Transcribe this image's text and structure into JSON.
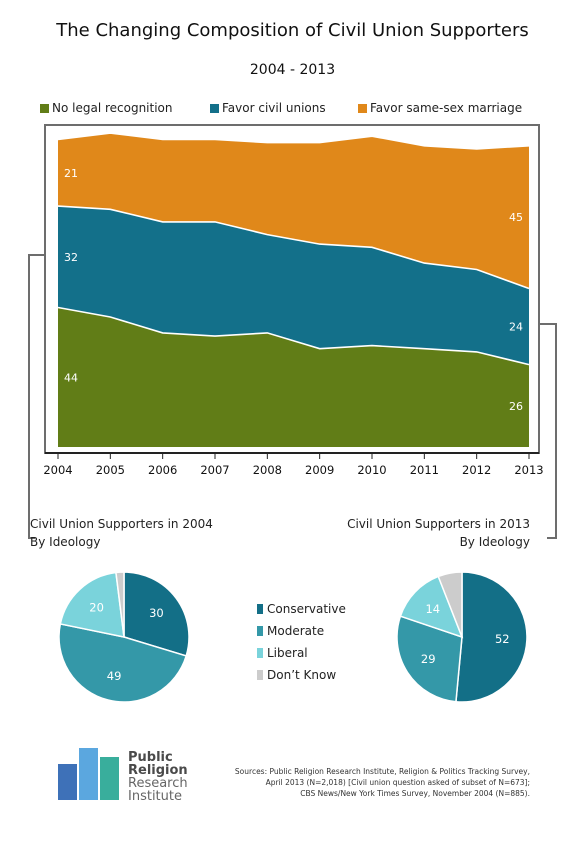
{
  "title": "The Changing Composition of Civil Union Supporters",
  "subtitle": "2004 - 2013",
  "colors": {
    "no_legal_recognition": "#617d17",
    "favor_civil_unions": "#13708a",
    "favor_same_sex_marriage": "#e0881a",
    "conservative": "#136f87",
    "moderate": "#3498a8",
    "liberal": "#7ad3db",
    "dont_know": "#cccccc",
    "frame": "#6d6d6d"
  },
  "chart_data": [
    {
      "type": "area",
      "stacked": true,
      "x": [
        "2004",
        "2005",
        "2006",
        "2007",
        "2008",
        "2009",
        "2010",
        "2011",
        "2012",
        "2013"
      ],
      "series": [
        {
          "name": "No legal recognition",
          "values": [
            44,
            41,
            36,
            35,
            36,
            31,
            32,
            31,
            30,
            26
          ]
        },
        {
          "name": "Favor civil unions",
          "values": [
            32,
            34,
            35,
            36,
            31,
            33,
            31,
            27,
            26,
            24
          ]
        },
        {
          "name": "Favor same-sex marriage",
          "values": [
            21,
            24,
            26,
            26,
            29,
            32,
            35,
            37,
            38,
            45
          ]
        }
      ],
      "data_labels": [
        {
          "series": 0,
          "index": 0,
          "text": "44"
        },
        {
          "series": 1,
          "index": 0,
          "text": "32"
        },
        {
          "series": 2,
          "index": 0,
          "text": "21"
        },
        {
          "series": 0,
          "index": 9,
          "text": "26"
        },
        {
          "series": 1,
          "index": 9,
          "text": "24"
        },
        {
          "series": 2,
          "index": 9,
          "text": "45"
        }
      ],
      "ylim": [
        0,
        100
      ],
      "legend": "top",
      "grid": false
    },
    {
      "type": "pie",
      "title": "Civil Union Supporters in 2004",
      "subtitle": "By Ideology",
      "labels": [
        "Conservative",
        "Moderate",
        "Liberal",
        "Don't Know"
      ],
      "values": [
        30,
        49,
        20,
        2
      ],
      "slice_labels": [
        "30",
        "49",
        "20",
        ""
      ]
    },
    {
      "type": "pie",
      "title": "Civil Union Supporters in 2013",
      "subtitle": "By Ideology",
      "labels": [
        "Conservative",
        "Moderate",
        "Liberal",
        "Don't Know"
      ],
      "values": [
        52,
        29,
        14,
        6
      ],
      "slice_labels": [
        "52",
        "29",
        "14",
        ""
      ]
    }
  ],
  "pie_legend": [
    "Conservative",
    "Moderate",
    "Liberal",
    "Don’t Know"
  ],
  "logo": {
    "line1": "Public",
    "line2": "Religion",
    "line3": "Research",
    "line4": "Institute"
  },
  "sources": [
    "Sources: Public Religion Research Institute, Religion & Politics Tracking Survey,",
    "April 2013 (N=2,018) [Civil union question asked of subset of N=673];",
    "CBS News/New York Times Survey, November 2004 (N=885)."
  ]
}
